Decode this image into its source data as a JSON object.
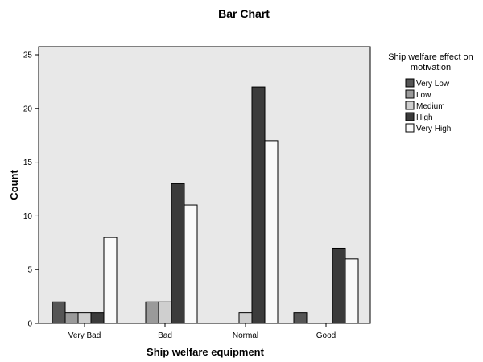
{
  "chart_data": {
    "type": "bar",
    "title": "Bar Chart",
    "xlabel": "Ship welfare equipment",
    "ylabel": "Count",
    "categories": [
      "Very Bad",
      "Bad",
      "Normal",
      "Good"
    ],
    "ylim": [
      0,
      26
    ],
    "yticks": [
      0,
      5,
      10,
      15,
      20,
      25
    ],
    "grid": false,
    "legend_title": "Ship welfare effect on motivation",
    "legend_title_lines": [
      "Ship welfare effect on",
      "motivation"
    ],
    "legend_position": "right",
    "series": [
      {
        "name": "Very Low",
        "color": "#555555",
        "values": [
          2,
          0,
          0,
          1
        ]
      },
      {
        "name": "Low",
        "color": "#9a9a9a",
        "values": [
          1,
          2,
          0,
          0
        ]
      },
      {
        "name": "Medium",
        "color": "#cfcfcf",
        "values": [
          1,
          2,
          1,
          0
        ]
      },
      {
        "name": "High",
        "color": "#3b3b3b",
        "values": [
          1,
          13,
          22,
          7
        ]
      },
      {
        "name": "Very High",
        "color": "#fafafa",
        "values": [
          8,
          11,
          17,
          6
        ]
      }
    ],
    "plot_background": "#e8e8e8"
  }
}
